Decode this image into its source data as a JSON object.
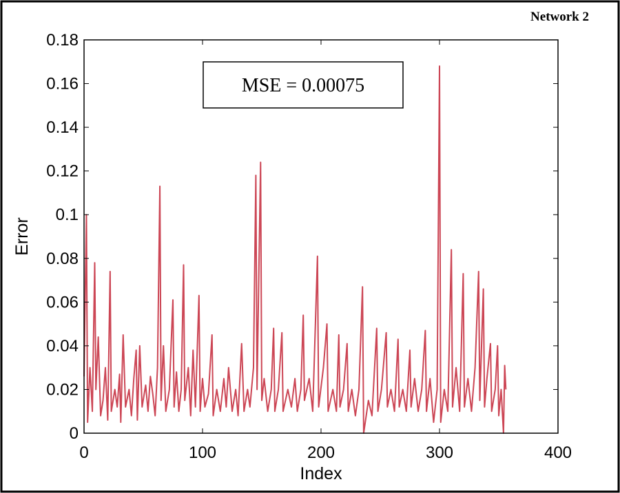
{
  "chart_data": {
    "type": "line",
    "title": "Network 2",
    "annotation": "MSE = 0.00075",
    "xlabel": "Index",
    "ylabel": "Error",
    "color": "#cc4655",
    "x": [
      0,
      2,
      3,
      5,
      7,
      9,
      10,
      12,
      14,
      16,
      18,
      20,
      22,
      23,
      26,
      28,
      30,
      31,
      33,
      35,
      38,
      40,
      42,
      44,
      45,
      47,
      49,
      52,
      54,
      56,
      58,
      60,
      62,
      64,
      65,
      67,
      69,
      72,
      75,
      76,
      78,
      80,
      82,
      84,
      85,
      88,
      90,
      92,
      94,
      97,
      98,
      100,
      102,
      105,
      108,
      109,
      112,
      115,
      118,
      120,
      122,
      125,
      128,
      130,
      133,
      135,
      138,
      140,
      143,
      145,
      146,
      149,
      150,
      152,
      155,
      158,
      160,
      161,
      164,
      167,
      168,
      172,
      175,
      178,
      180,
      183,
      185,
      186,
      190,
      193,
      197,
      198,
      202,
      205,
      206,
      210,
      213,
      215,
      216,
      219,
      222,
      223,
      226,
      229,
      232,
      235,
      236,
      240,
      243,
      247,
      248,
      251,
      255,
      256,
      259,
      262,
      265,
      266,
      269,
      272,
      275,
      276,
      279,
      282,
      285,
      288,
      289,
      292,
      295,
      298,
      300,
      301,
      304,
      307,
      310,
      311,
      314,
      317,
      320,
      321,
      324,
      327,
      330,
      333,
      334,
      337,
      338,
      340,
      343,
      344,
      347,
      349,
      350,
      352,
      354,
      355,
      356
    ],
    "values": [
      0.026,
      0.1,
      0.005,
      0.03,
      0.01,
      0.078,
      0.02,
      0.044,
      0.008,
      0.015,
      0.03,
      0.006,
      0.074,
      0.01,
      0.02,
      0.012,
      0.027,
      0.005,
      0.045,
      0.012,
      0.02,
      0.008,
      0.025,
      0.038,
      0.006,
      0.04,
      0.012,
      0.022,
      0.01,
      0.026,
      0.018,
      0.008,
      0.03,
      0.113,
      0.015,
      0.04,
      0.01,
      0.02,
      0.061,
      0.012,
      0.028,
      0.01,
      0.02,
      0.077,
      0.015,
      0.03,
      0.008,
      0.038,
      0.012,
      0.063,
      0.01,
      0.025,
      0.012,
      0.018,
      0.045,
      0.008,
      0.02,
      0.01,
      0.025,
      0.012,
      0.03,
      0.01,
      0.02,
      0.008,
      0.041,
      0.01,
      0.02,
      0.012,
      0.03,
      0.118,
      0.02,
      0.124,
      0.015,
      0.025,
      0.01,
      0.02,
      0.048,
      0.01,
      0.02,
      0.046,
      0.01,
      0.02,
      0.012,
      0.025,
      0.01,
      0.02,
      0.054,
      0.015,
      0.025,
      0.01,
      0.081,
      0.012,
      0.03,
      0.05,
      0.01,
      0.02,
      0.01,
      0.045,
      0.012,
      0.02,
      0.041,
      0.01,
      0.02,
      0.008,
      0.02,
      0.067,
      0,
      0.015,
      0.008,
      0.048,
      0.01,
      0.02,
      0.046,
      0.012,
      0.02,
      0.01,
      0.043,
      0.012,
      0.02,
      0.01,
      0.038,
      0.012,
      0.025,
      0.01,
      0.02,
      0.047,
      0.01,
      0.025,
      0.005,
      0.02,
      0.168,
      0.005,
      0.02,
      0.01,
      0.084,
      0.012,
      0.03,
      0.01,
      0.073,
      0.012,
      0.025,
      0.01,
      0.03,
      0.074,
      0.015,
      0.066,
      0.012,
      0.025,
      0.041,
      0.01,
      0.02,
      0.04,
      0.008,
      0.02,
      0,
      0.031,
      0.02
    ],
    "xlim": [
      0,
      400
    ],
    "xticks": [
      0,
      100,
      200,
      300,
      400
    ],
    "ylim": [
      0,
      0.18
    ],
    "yticks": [
      0,
      0.02,
      0.04,
      0.06,
      0.08,
      0.1,
      0.12,
      0.14,
      0.16,
      0.18
    ]
  }
}
